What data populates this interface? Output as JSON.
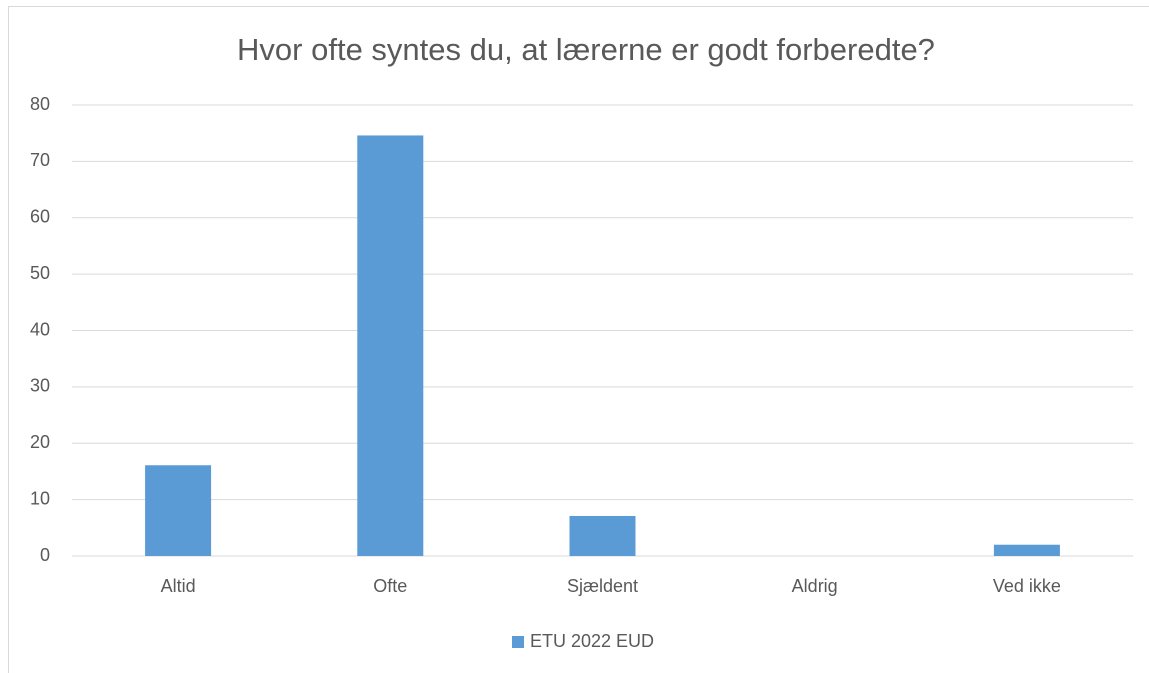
{
  "chart_data": {
    "type": "bar",
    "title": "Hvor ofte syntes du, at lærerne er godt forberedte?",
    "categories": [
      "Altid",
      "Ofte",
      "Sjældent",
      "Aldrig",
      "Ved ikke"
    ],
    "series": [
      {
        "name": "ETU 2022 EUD",
        "color": "#5b9bd5",
        "values": [
          16.1,
          74.6,
          7.1,
          0,
          2.0
        ]
      }
    ],
    "ylim": [
      0,
      80
    ],
    "yticks": [
      0,
      10,
      20,
      30,
      40,
      50,
      60,
      70,
      80
    ],
    "grid": true,
    "legend": "bottom"
  }
}
